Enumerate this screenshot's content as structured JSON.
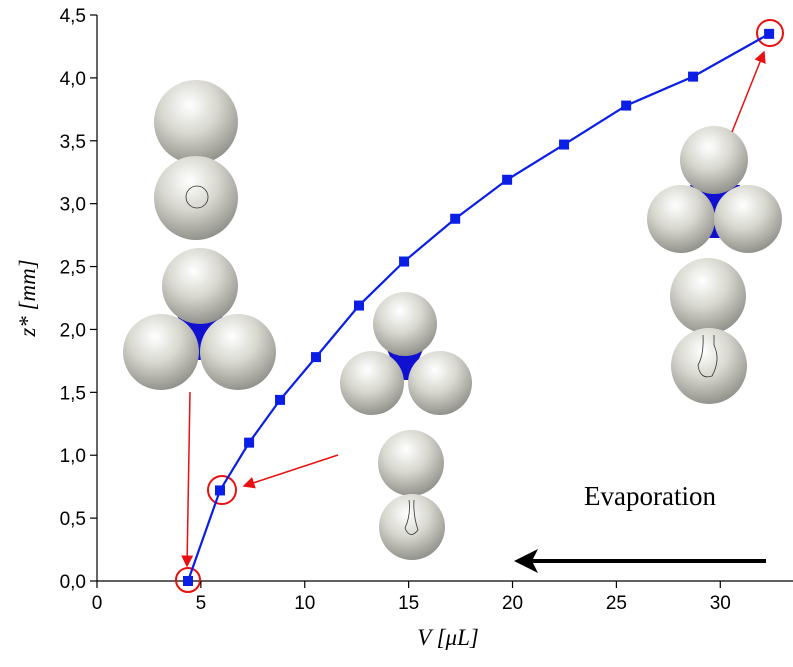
{
  "chart_data": {
    "type": "line",
    "x_label": "V [μL]",
    "y_label": "z* [mm]",
    "annotation": "Evaporation",
    "series": [
      {
        "color": "#0a1ee6",
        "x": [
          4.38,
          5.92,
          7.32,
          8.81,
          10.54,
          12.61,
          14.78,
          17.24,
          19.74,
          22.48,
          25.47,
          28.69,
          32.35
        ],
        "values": [
          0.0,
          0.72,
          1.1,
          1.44,
          1.78,
          2.19,
          2.54,
          2.88,
          3.19,
          3.47,
          3.78,
          4.01,
          4.35
        ]
      }
    ],
    "xlim": [
      0,
      33.5
    ],
    "ylim": [
      0,
      4.5
    ],
    "xticks": [
      0,
      5,
      10,
      15,
      20,
      25,
      30
    ],
    "yticks": [
      {
        "value": 0,
        "label": "0,0"
      },
      {
        "value": 0.5,
        "label": "0,5"
      },
      {
        "value": 1,
        "label": "1,0"
      },
      {
        "value": 1.5,
        "label": "1,5"
      },
      {
        "value": 2,
        "label": "2,0"
      },
      {
        "value": 2.5,
        "label": "2,5"
      },
      {
        "value": 3,
        "label": "3,0"
      },
      {
        "value": 3.5,
        "label": "3,5"
      },
      {
        "value": 4,
        "label": "4,0"
      },
      {
        "value": 4.5,
        "label": "4,5"
      }
    ]
  }
}
